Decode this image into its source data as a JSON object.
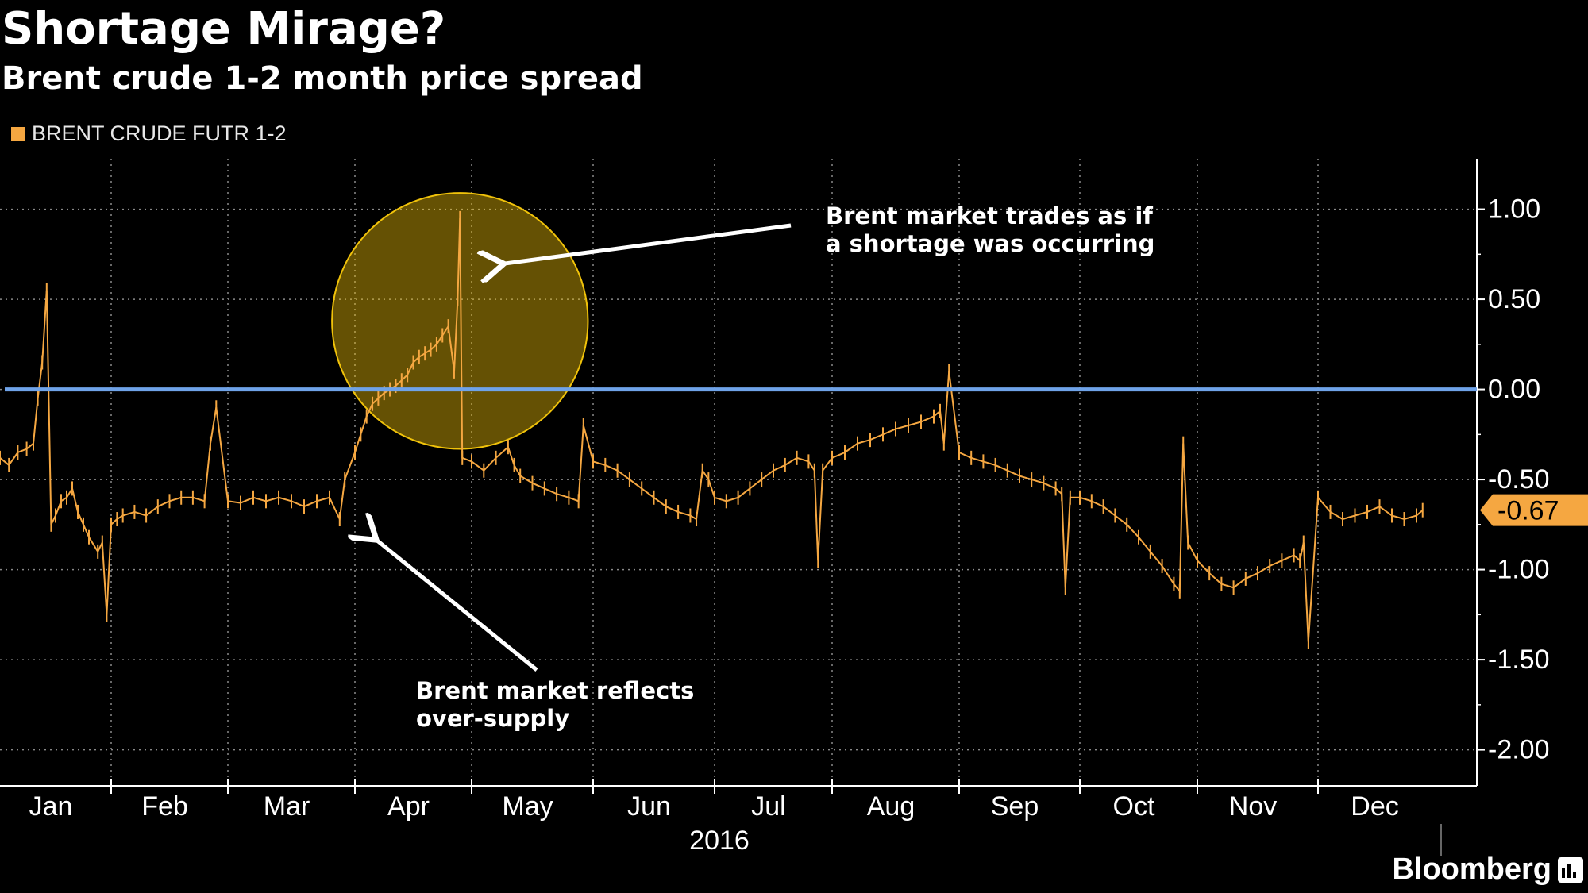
{
  "header": {
    "title": "Shortage Mirage?",
    "subtitle": "Brent crude 1-2 month price spread"
  },
  "brand": {
    "name": "Bloomberg"
  },
  "colors": {
    "series": "#f5a741",
    "zero_line": "#6fa3e8",
    "highlight": "#f0c20a",
    "grid": "#8a8a8a",
    "bg": "#000000"
  },
  "chart_data": {
    "type": "line",
    "title": "Shortage Mirage?",
    "subtitle": "Brent crude 1-2 month price spread",
    "legend": [
      {
        "name": "BRENT CRUDE FUTR 1-2",
        "color": "#f5a741",
        "placement": "top-left"
      }
    ],
    "xlabel": "2016",
    "ylabel": "",
    "x_ticks": [
      "Jan",
      "Feb",
      "Mar",
      "Apr",
      "May",
      "Jun",
      "Jul",
      "Aug",
      "Sep",
      "Oct",
      "Nov",
      "Dec"
    ],
    "year_label": "2016",
    "y_ticks": [
      "1.00",
      "0.50",
      "0.00",
      "-0.50",
      "-1.00",
      "-1.50",
      "-2.00"
    ],
    "ylim": [
      -2.2,
      1.28
    ],
    "xlim": [
      0,
      12.3
    ],
    "last_value_label": "-0.67",
    "reference_line": {
      "y": 0.0
    },
    "series": [
      {
        "name": "BRENT CRUDE FUTR 1-2",
        "x": [
          0.0,
          0.08,
          0.16,
          0.24,
          0.3,
          0.34,
          0.38,
          0.42,
          0.46,
          0.5,
          0.55,
          0.6,
          0.65,
          0.7,
          0.75,
          0.8,
          0.88,
          0.92,
          0.96,
          1.0,
          1.05,
          1.1,
          1.2,
          1.3,
          1.4,
          1.5,
          1.6,
          1.7,
          1.8,
          1.85,
          1.9,
          2.0,
          2.1,
          2.2,
          2.3,
          2.4,
          2.5,
          2.6,
          2.7,
          2.8,
          2.88,
          2.92,
          3.0,
          3.05,
          3.1,
          3.15,
          3.2,
          3.25,
          3.3,
          3.35,
          3.4,
          3.45,
          3.5,
          3.55,
          3.6,
          3.65,
          3.7,
          3.75,
          3.8,
          3.85,
          3.88,
          3.9,
          3.92,
          4.0,
          4.1,
          4.2,
          4.3,
          4.35,
          4.4,
          4.5,
          4.6,
          4.7,
          4.8,
          4.88,
          4.92,
          5.0,
          5.1,
          5.2,
          5.3,
          5.4,
          5.5,
          5.6,
          5.7,
          5.8,
          5.85,
          5.9,
          5.95,
          6.0,
          6.1,
          6.2,
          6.3,
          6.4,
          6.5,
          6.6,
          6.7,
          6.8,
          6.85,
          6.88,
          6.92,
          7.0,
          7.1,
          7.2,
          7.3,
          7.4,
          7.5,
          7.6,
          7.7,
          7.8,
          7.85,
          7.88,
          7.92,
          8.0,
          8.1,
          8.2,
          8.3,
          8.4,
          8.5,
          8.6,
          8.7,
          8.8,
          8.85,
          8.88,
          8.92,
          9.0,
          9.1,
          9.2,
          9.3,
          9.4,
          9.5,
          9.6,
          9.7,
          9.8,
          9.85,
          9.88,
          9.92,
          10.0,
          10.1,
          10.2,
          10.3,
          10.4,
          10.5,
          10.6,
          10.7,
          10.8,
          10.85,
          10.88,
          10.92,
          11.0,
          11.1,
          11.2,
          11.3,
          11.4,
          11.5,
          11.6,
          11.7,
          11.8,
          11.85
        ],
        "values": [
          -0.38,
          -0.42,
          -0.35,
          -0.33,
          -0.3,
          -0.05,
          0.15,
          0.55,
          -0.75,
          -0.7,
          -0.62,
          -0.6,
          -0.55,
          -0.68,
          -0.75,
          -0.82,
          -0.9,
          -0.85,
          -1.25,
          -0.75,
          -0.72,
          -0.7,
          -0.68,
          -0.7,
          -0.65,
          -0.62,
          -0.6,
          -0.6,
          -0.62,
          -0.3,
          -0.1,
          -0.62,
          -0.63,
          -0.6,
          -0.62,
          -0.6,
          -0.62,
          -0.65,
          -0.62,
          -0.6,
          -0.72,
          -0.5,
          -0.35,
          -0.25,
          -0.15,
          -0.08,
          -0.05,
          -0.02,
          0.0,
          0.02,
          0.05,
          0.08,
          0.15,
          0.18,
          0.2,
          0.22,
          0.25,
          0.3,
          0.35,
          0.1,
          0.5,
          0.95,
          -0.38,
          -0.4,
          -0.45,
          -0.38,
          -0.32,
          -0.42,
          -0.48,
          -0.52,
          -0.55,
          -0.58,
          -0.6,
          -0.62,
          -0.2,
          -0.4,
          -0.42,
          -0.45,
          -0.5,
          -0.55,
          -0.6,
          -0.65,
          -0.68,
          -0.7,
          -0.72,
          -0.45,
          -0.5,
          -0.6,
          -0.62,
          -0.6,
          -0.55,
          -0.5,
          -0.45,
          -0.42,
          -0.38,
          -0.4,
          -0.45,
          -0.95,
          -0.45,
          -0.38,
          -0.35,
          -0.3,
          -0.28,
          -0.25,
          -0.22,
          -0.2,
          -0.18,
          -0.15,
          -0.12,
          -0.3,
          0.1,
          -0.35,
          -0.38,
          -0.4,
          -0.42,
          -0.45,
          -0.48,
          -0.5,
          -0.52,
          -0.55,
          -0.58,
          -1.1,
          -0.6,
          -0.6,
          -0.62,
          -0.65,
          -0.7,
          -0.75,
          -0.82,
          -0.9,
          -0.98,
          -1.08,
          -1.12,
          -0.3,
          -0.85,
          -0.95,
          -1.02,
          -1.08,
          -1.1,
          -1.05,
          -1.02,
          -0.98,
          -0.95,
          -0.92,
          -0.95,
          -0.85,
          -1.4,
          -0.6,
          -0.68,
          -0.72,
          -0.7,
          -0.68,
          -0.65,
          -0.7,
          -0.72,
          -0.7,
          -0.67
        ]
      }
    ],
    "annotations": [
      {
        "text_lines": [
          "Brent market trades as if",
          "a shortage was occurring"
        ],
        "points_to": {
          "x": 4.2,
          "y": 0.68
        },
        "text_at": {
          "x": 7.0,
          "y": 0.9
        }
      },
      {
        "text_lines": [
          "Brent market reflects",
          "over-supply"
        ],
        "points_to": {
          "x": 3.15,
          "y": -0.8
        },
        "text_at": {
          "x": 3.8,
          "y": -1.55
        }
      }
    ],
    "highlight_circle": {
      "center": {
        "x": 3.9,
        "y": 0.38
      },
      "radius_y": 0.71
    },
    "grid": true
  }
}
